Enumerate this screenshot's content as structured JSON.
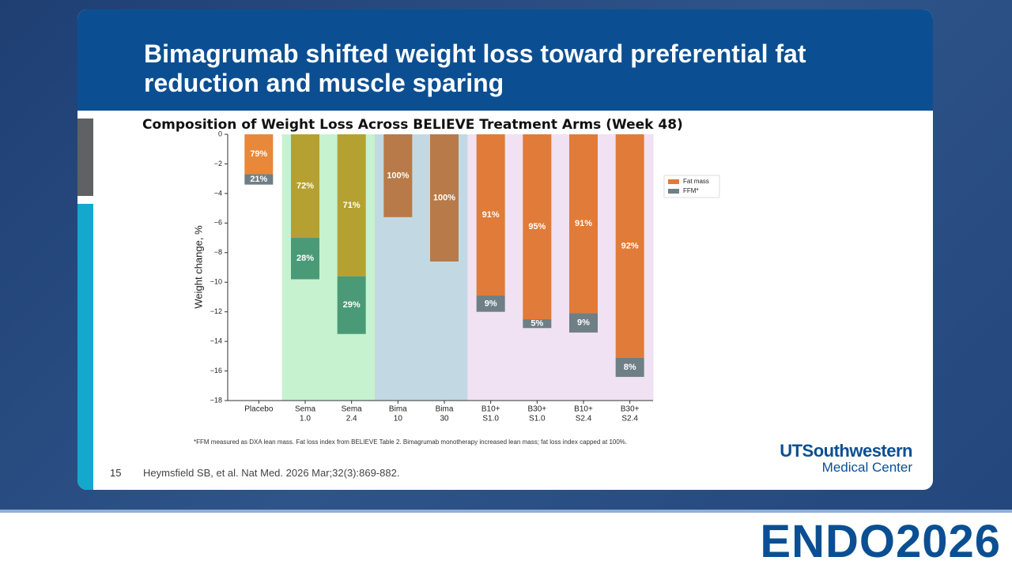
{
  "slide": {
    "title": "Bimagrumab shifted weight loss toward preferential fat reduction and muscle sparing",
    "number": "15",
    "citation": "Heymsfield SB, et al. Nat Med. 2026 Mar;32(3):869-882.",
    "logo_line1": "UTSouthwestern",
    "logo_line2": "Medical Center",
    "event": "ENDO2026"
  },
  "chart_data": {
    "type": "stacked-bar",
    "title": "Composition of Weight Loss Across BELIEVE Treatment Arms (Week 48)",
    "y_label": "Weight change, %",
    "footnote": "*FFM measured as DXA lean mass. Fat loss index from BELIEVE Table 2. Bimagrumab monotherapy increased lean mass; fat loss index capped at 100%.",
    "categories": [
      [
        "Placebo"
      ],
      [
        "Sema",
        "1.0"
      ],
      [
        "Sema",
        "2.4"
      ],
      [
        "Bima",
        "10"
      ],
      [
        "Bima",
        "30"
      ],
      [
        "B10+",
        "S1.0"
      ],
      [
        "B30+",
        "S1.0"
      ],
      [
        "B10+",
        "S2.4"
      ],
      [
        "B30+",
        "S2.4"
      ]
    ],
    "group_colors": [
      "#ffffff",
      "#c6f2cf",
      "#c6f2cf",
      "#c2d9e4",
      "#c2d9e4",
      "#f0e2f3",
      "#f0e2f3",
      "#f0e2f3",
      "#f0e2f3"
    ],
    "series": [
      {
        "name": "Fat mass",
        "color": "#e07b39",
        "values": [
          -2.7,
          -7.0,
          -9.6,
          -5.6,
          -8.6,
          -10.9,
          -12.5,
          -12.1,
          -15.1
        ],
        "colors": [
          "#e8883a",
          "#b5a132",
          "#b5a132",
          "#b87a48",
          "#b87a48",
          "#e07b39",
          "#e07b39",
          "#e07b39",
          "#e07b39"
        ],
        "segment_labels": [
          "79%",
          "72%",
          "71%",
          "100%",
          "100%",
          "91%",
          "95%",
          "91%",
          "92%"
        ]
      },
      {
        "name": "FFM*",
        "color": "#6e7f86",
        "values": [
          -0.7,
          -2.8,
          -3.9,
          0,
          0,
          -1.1,
          -0.6,
          -1.3,
          -1.3
        ],
        "colors": [
          "#6e7f86",
          "#4a9a78",
          "#4a9a78",
          "#6e7f86",
          "#6e7f86",
          "#6e7f86",
          "#6e7f86",
          "#6e7f86",
          "#6e7f86"
        ],
        "segment_labels": [
          "21%",
          "28%",
          "29%",
          null,
          null,
          "9%",
          "5%",
          "9%",
          "8%"
        ]
      }
    ],
    "ylim": [
      -18,
      0
    ],
    "yticks": [
      {
        "value": -18,
        "label": "−18"
      },
      {
        "value": -16,
        "label": "−16"
      },
      {
        "value": -14,
        "label": "−14"
      },
      {
        "value": -12,
        "label": "−12"
      },
      {
        "value": -10,
        "label": "−10"
      },
      {
        "value": -8,
        "label": "−8"
      },
      {
        "value": -6,
        "label": "−6"
      },
      {
        "value": -4,
        "label": "−4"
      },
      {
        "value": -2,
        "label": "−2"
      },
      0
    ],
    "legend": "upper-right"
  }
}
